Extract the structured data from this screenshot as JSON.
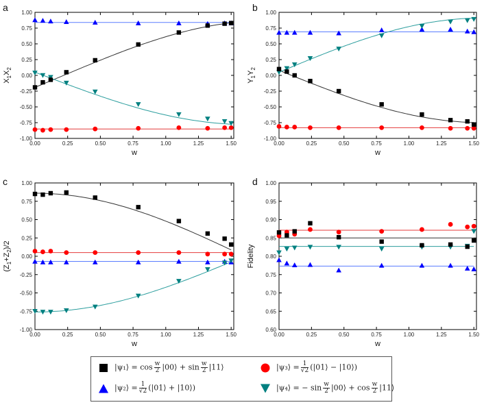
{
  "chart_data": [
    {
      "type": "scatter",
      "panel_label": "a",
      "ylabel_parts": [
        "X",
        "1",
        "X",
        "2"
      ],
      "xlabel": "w",
      "xlim": [
        0,
        1.5
      ],
      "ylim": [
        -1.0,
        1.0
      ],
      "xticks": [
        "0.00",
        "0.25",
        "0.50",
        "0.75",
        "1.00",
        "1.25",
        "1.50"
      ],
      "yticks": [
        "-1.00",
        "-0.75",
        "-0.50",
        "-0.25",
        "0.00",
        "0.25",
        "0.50",
        "0.75",
        "1.00"
      ],
      "series": [
        {
          "name": "psi1",
          "x": [
            0.0,
            0.06,
            0.12,
            0.24,
            0.46,
            0.79,
            1.1,
            1.32,
            1.45,
            1.5
          ],
          "y": [
            -0.19,
            -0.11,
            -0.07,
            0.05,
            0.24,
            0.49,
            0.68,
            0.79,
            0.82,
            0.83
          ]
        },
        {
          "name": "psi2",
          "x": [
            0.0,
            0.06,
            0.12,
            0.24,
            0.46,
            0.79,
            1.1,
            1.32,
            1.45,
            1.5
          ],
          "y": [
            0.88,
            0.87,
            0.86,
            0.85,
            0.84,
            0.83,
            0.83,
            0.82,
            0.83,
            0.83
          ]
        },
        {
          "name": "psi3",
          "x": [
            0.0,
            0.06,
            0.12,
            0.24,
            0.46,
            0.79,
            1.1,
            1.32,
            1.45,
            1.5
          ],
          "y": [
            -0.86,
            -0.87,
            -0.86,
            -0.86,
            -0.85,
            -0.84,
            -0.83,
            -0.84,
            -0.83,
            -0.83
          ]
        },
        {
          "name": "psi4",
          "x": [
            0.0,
            0.06,
            0.12,
            0.24,
            0.46,
            0.79,
            1.1,
            1.32,
            1.45,
            1.5
          ],
          "y": [
            0.04,
            0.0,
            -0.03,
            -0.12,
            -0.26,
            -0.46,
            -0.62,
            -0.69,
            -0.73,
            -0.76
          ]
        }
      ],
      "fits": [
        {
          "name": "psi1",
          "kind": "amp_sin",
          "amp": 0.85,
          "offset": 0.0
        },
        {
          "name": "psi2",
          "kind": "const",
          "value": 0.84
        },
        {
          "name": "psi3",
          "kind": "const",
          "value": -0.85
        },
        {
          "name": "psi4",
          "kind": "amp_sin",
          "amp": -0.78,
          "offset": 0.0
        }
      ]
    },
    {
      "type": "scatter",
      "panel_label": "b",
      "ylabel_parts": [
        "Y",
        "1",
        "Y",
        "2"
      ],
      "xlabel": "w",
      "xlim": [
        0,
        1.5
      ],
      "ylim": [
        -1.0,
        1.0
      ],
      "xticks": [
        "0.00",
        "0.25",
        "0.50",
        "0.75",
        "1.00",
        "1.25",
        "1.50"
      ],
      "yticks": [
        "-1.00",
        "-0.75",
        "-0.50",
        "-0.25",
        "0.00",
        "0.25",
        "0.50",
        "0.75",
        "1.00"
      ],
      "series": [
        {
          "name": "psi1",
          "x": [
            0.0,
            0.06,
            0.12,
            0.24,
            0.46,
            0.79,
            1.1,
            1.32,
            1.45,
            1.5
          ],
          "y": [
            0.1,
            0.06,
            0.0,
            -0.09,
            -0.25,
            -0.46,
            -0.62,
            -0.71,
            -0.73,
            -0.78
          ]
        },
        {
          "name": "psi2",
          "x": [
            0.0,
            0.06,
            0.12,
            0.24,
            0.46,
            0.79,
            1.1,
            1.32,
            1.45,
            1.5
          ],
          "y": [
            0.68,
            0.68,
            0.68,
            0.68,
            0.67,
            0.72,
            0.73,
            0.73,
            0.7,
            0.69
          ]
        },
        {
          "name": "psi3",
          "x": [
            0.0,
            0.06,
            0.12,
            0.24,
            0.46,
            0.79,
            1.1,
            1.32,
            1.45,
            1.5
          ],
          "y": [
            -0.81,
            -0.82,
            -0.82,
            -0.83,
            -0.83,
            -0.83,
            -0.83,
            -0.84,
            -0.84,
            -0.84
          ]
        },
        {
          "name": "psi4",
          "x": [
            0.0,
            0.06,
            0.12,
            0.24,
            0.46,
            0.79,
            1.1,
            1.32,
            1.45,
            1.5
          ],
          "y": [
            0.05,
            0.11,
            0.17,
            0.27,
            0.42,
            0.63,
            0.78,
            0.85,
            0.87,
            0.89
          ]
        }
      ],
      "fits": [
        {
          "name": "psi1",
          "kind": "amp_sin",
          "amp": -0.83,
          "offset": 0.08
        },
        {
          "name": "psi2",
          "kind": "const",
          "value": 0.69
        },
        {
          "name": "psi3",
          "kind": "const",
          "value": -0.83
        },
        {
          "name": "psi4",
          "kind": "amp_sin",
          "amp": 0.86,
          "offset": 0.05
        }
      ]
    },
    {
      "type": "scatter",
      "panel_label": "c",
      "ylabel_parts": [
        "(Z",
        "1",
        "+Z",
        "2",
        ")/2"
      ],
      "xlabel": "w",
      "xlim": [
        0,
        1.5
      ],
      "ylim": [
        -1.0,
        1.0
      ],
      "xticks": [
        "0.00",
        "0.25",
        "0.50",
        "0.75",
        "1.00",
        "1.25",
        "1.50"
      ],
      "yticks": [
        "-1.00",
        "-0.75",
        "-0.50",
        "-0.25",
        "0.00",
        "0.25",
        "0.50",
        "0.75",
        "1.00"
      ],
      "series": [
        {
          "name": "psi1",
          "x": [
            0.0,
            0.06,
            0.12,
            0.24,
            0.46,
            0.79,
            1.1,
            1.32,
            1.45,
            1.5
          ],
          "y": [
            0.85,
            0.84,
            0.86,
            0.87,
            0.8,
            0.67,
            0.48,
            0.31,
            0.24,
            0.16
          ]
        },
        {
          "name": "psi2",
          "x": [
            0.0,
            0.06,
            0.12,
            0.24,
            0.46,
            0.79,
            1.1,
            1.32,
            1.45,
            1.5
          ],
          "y": [
            -0.07,
            -0.08,
            -0.08,
            -0.08,
            -0.08,
            -0.08,
            -0.07,
            -0.08,
            -0.07,
            -0.08
          ]
        },
        {
          "name": "psi3",
          "x": [
            0.0,
            0.06,
            0.12,
            0.24,
            0.46,
            0.79,
            1.1,
            1.32,
            1.45,
            1.5
          ],
          "y": [
            0.07,
            0.06,
            0.07,
            0.05,
            0.05,
            0.05,
            0.05,
            0.03,
            0.03,
            0.03
          ]
        },
        {
          "name": "psi4",
          "x": [
            0.0,
            0.06,
            0.12,
            0.24,
            0.46,
            0.79,
            1.1,
            1.32,
            1.45,
            1.5
          ],
          "y": [
            -0.75,
            -0.76,
            -0.76,
            -0.74,
            -0.69,
            -0.54,
            -0.34,
            -0.18,
            -0.09,
            -0.06
          ]
        }
      ],
      "fits": [
        {
          "name": "psi1",
          "kind": "amp_cos",
          "amp": 0.86,
          "offset": 0.0
        },
        {
          "name": "psi2",
          "kind": "const",
          "value": -0.07
        },
        {
          "name": "psi3",
          "kind": "const",
          "value": 0.05
        },
        {
          "name": "psi4",
          "kind": "amp_cos",
          "amp": -0.76,
          "offset": 0.0
        }
      ]
    },
    {
      "type": "scatter",
      "panel_label": "d",
      "ylabel_parts": [
        "Fidelity"
      ],
      "xlabel": "w",
      "xlim": [
        0,
        1.5
      ],
      "ylim": [
        0.6,
        1.0
      ],
      "xticks": [
        "0.00",
        "0.25",
        "0.50",
        "0.75",
        "1.00",
        "1.25",
        "1.50"
      ],
      "yticks": [
        "0.60",
        "0.65",
        "0.70",
        "0.75",
        "0.80",
        "0.85",
        "0.90",
        "0.95",
        "1.00"
      ],
      "series": [
        {
          "name": "psi1",
          "x": [
            0.0,
            0.06,
            0.12,
            0.24,
            0.46,
            0.79,
            1.1,
            1.32,
            1.45,
            1.5
          ],
          "y": [
            0.865,
            0.857,
            0.868,
            0.89,
            0.852,
            0.84,
            0.83,
            0.832,
            0.826,
            0.843
          ]
        },
        {
          "name": "psi2",
          "x": [
            0.0,
            0.06,
            0.12,
            0.24,
            0.46,
            0.79,
            1.1,
            1.32,
            1.45,
            1.5
          ],
          "y": [
            0.79,
            0.781,
            0.776,
            0.777,
            0.762,
            0.775,
            0.775,
            0.775,
            0.767,
            0.765
          ]
        },
        {
          "name": "psi3",
          "x": [
            0.0,
            0.06,
            0.12,
            0.24,
            0.46,
            0.79,
            1.1,
            1.32,
            1.45,
            1.5
          ],
          "y": [
            0.856,
            0.866,
            0.86,
            0.873,
            0.866,
            0.868,
            0.873,
            0.887,
            0.88,
            0.882
          ]
        },
        {
          "name": "psi4",
          "x": [
            0.0,
            0.06,
            0.12,
            0.24,
            0.46,
            0.79,
            1.1,
            1.32,
            1.45,
            1.5
          ],
          "y": [
            0.81,
            0.82,
            0.823,
            0.825,
            0.825,
            0.82,
            0.825,
            0.825,
            0.828,
            0.868
          ]
        }
      ],
      "fits": [
        {
          "name": "psi1",
          "kind": "const",
          "value": 0.85
        },
        {
          "name": "psi2",
          "kind": "const",
          "value": 0.773
        },
        {
          "name": "psi3",
          "kind": "const",
          "value": 0.871
        },
        {
          "name": "psi4",
          "kind": "const",
          "value": 0.827
        }
      ]
    }
  ],
  "colors": {
    "psi1": "#000000",
    "psi2": "#0000ff",
    "psi3": "#ff0000",
    "psi4": "#008080",
    "fit_psi1": "#333333",
    "fit_psi2": "#5a7cff",
    "fit_psi3": "#e43a3a",
    "fit_psi4": "#2a9d9d"
  },
  "legend": {
    "psi1": {
      "lhs": "|ψ₁⟩ = cos",
      "frac_num": "w",
      "frac_den": "2",
      "mid": "|00⟩ + sin",
      "frac2_num": "w",
      "frac2_den": "2",
      "tail": "|11⟩"
    },
    "psi2": {
      "lhs": "|ψ₂⟩ =",
      "frac_num": "1",
      "frac_den": "√2",
      "tail": "(|01⟩ + |10⟩)"
    },
    "psi3": {
      "lhs": "|ψ₃⟩ =",
      "frac_num": "1",
      "frac_den": "√2",
      "tail": "(|01⟩ − |10⟩)"
    },
    "psi4": {
      "lhs": "|ψ₄⟩ = − sin",
      "frac_num": "w",
      "frac_den": "2",
      "mid": "|00⟩ + cos",
      "frac2_num": "w",
      "frac2_den": "2",
      "tail": "|11⟩"
    }
  }
}
